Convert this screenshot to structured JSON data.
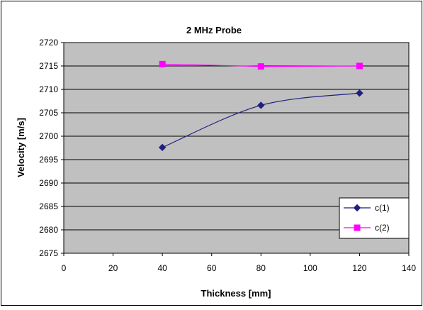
{
  "chart_data": {
    "type": "line",
    "title": "2 MHz Probe",
    "xlabel": "Thickness [mm]",
    "ylabel": "Velocity [m/s]",
    "xlim": [
      0,
      140
    ],
    "ylim": [
      2675,
      2720
    ],
    "xticks": [
      0,
      20,
      40,
      60,
      80,
      100,
      120,
      140
    ],
    "yticks": [
      2675,
      2680,
      2685,
      2690,
      2695,
      2700,
      2705,
      2710,
      2715,
      2720
    ],
    "grid": "horizontal",
    "legend_position": "right",
    "x": [
      40,
      80,
      120
    ],
    "series": [
      {
        "name": "c(1)",
        "values": [
          2697.6,
          2706.6,
          2709.2
        ],
        "color": "#1f1f80",
        "marker": "diamond",
        "smooth": true
      },
      {
        "name": "c(2)",
        "values": [
          2715.4,
          2714.9,
          2715.0
        ],
        "color": "#ff00ff",
        "marker": "square",
        "smooth": false
      }
    ],
    "colors": {
      "plot_background": "#c0c0c0",
      "gridline": "#000000",
      "axis": "#000000"
    }
  }
}
